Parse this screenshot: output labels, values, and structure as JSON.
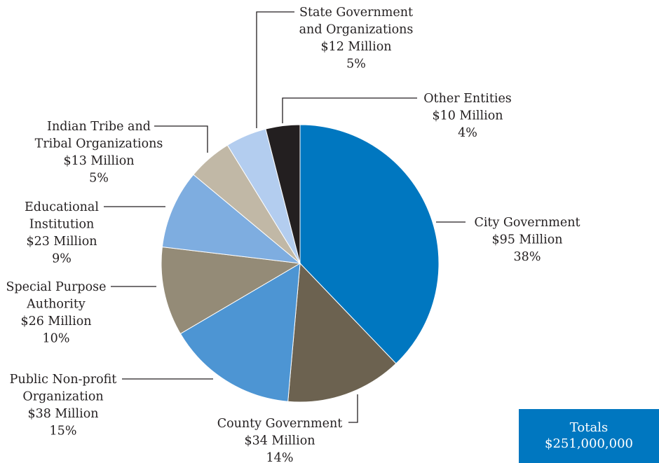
{
  "chart_data": {
    "type": "pie",
    "start_angle_deg": 0,
    "direction": "clockwise",
    "slices": [
      {
        "name": "City Government",
        "lines": [
          "City Government"
        ],
        "amount": "$95 Million",
        "percent": "38%",
        "value": 95,
        "color": "#0077c0"
      },
      {
        "name": "County Government",
        "lines": [
          "County Government"
        ],
        "amount": "$34 Million",
        "percent": "14%",
        "value": 34,
        "color": "#6c6250"
      },
      {
        "name": "Public Non-profit Organization",
        "lines": [
          "Public Non-profit",
          "Organization"
        ],
        "amount": "$38 Million",
        "percent": "15%",
        "value": 38,
        "color": "#4d95d3"
      },
      {
        "name": "Special Purpose Authority",
        "lines": [
          "Special Purpose",
          "Authority"
        ],
        "amount": "$26 Million",
        "percent": "10%",
        "value": 26,
        "color": "#948b77"
      },
      {
        "name": "Educational Institution",
        "lines": [
          "Educational",
          "Institution"
        ],
        "amount": "$23 Million",
        "percent": "9%",
        "value": 23,
        "color": "#7eade0"
      },
      {
        "name": "Indian Tribe and Tribal Organizations",
        "lines": [
          "Indian Tribe and",
          "Tribal Organizations"
        ],
        "amount": "$13 Million",
        "percent": "5%",
        "value": 13,
        "color": "#c1b8a6"
      },
      {
        "name": "State Government and Organizations",
        "lines": [
          "State Government",
          "and Organizations"
        ],
        "amount": "$12 Million",
        "percent": "5%",
        "value": 12,
        "color": "#b3cdef"
      },
      {
        "name": "Other Entities",
        "lines": [
          "Other Entities"
        ],
        "amount": "$10 Million",
        "percent": "4%",
        "value": 10,
        "color": "#231f20"
      }
    ],
    "totals": {
      "label": "Totals",
      "value": "$251,000,000"
    },
    "accent_color": "#0077c0"
  }
}
